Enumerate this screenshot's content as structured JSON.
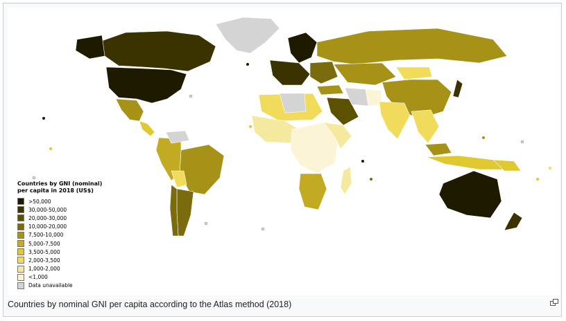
{
  "legend": {
    "title": "Countries by GNI (nominal) per capita in 2018 (US$)",
    "items": [
      {
        "label": ">50,000",
        "color": "#1e1a00"
      },
      {
        "label": "30,000-50,000",
        "color": "#3a3300"
      },
      {
        "label": "20,000-30,000",
        "color": "#5c5100"
      },
      {
        "label": "10,000-20,000",
        "color": "#7a6c0c"
      },
      {
        "label": "7,500-10,000",
        "color": "#a69216"
      },
      {
        "label": "5,000-7,500",
        "color": "#c2ab22"
      },
      {
        "label": "3,500-5,000",
        "color": "#e0c830"
      },
      {
        "label": "2,000-3,500",
        "color": "#f0dc5a"
      },
      {
        "label": "1,000-2,000",
        "color": "#f5e9a0"
      },
      {
        "label": "<1,000",
        "color": "#fbf5d6"
      },
      {
        "label": "Data unavailable",
        "color": "#d4d4d4"
      }
    ]
  },
  "caption": "Countries by nominal GNI per capita according to the Atlas method (2018)",
  "icons": {
    "enlarge": "enlarge-icon"
  }
}
